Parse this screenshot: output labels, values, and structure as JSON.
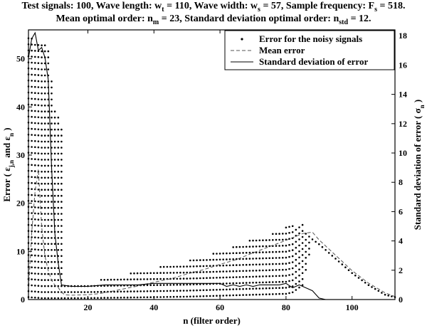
{
  "title_lines": [
    [
      {
        "t": "Test signals: 100, Wave length: w"
      },
      {
        "t": "t",
        "sub": true
      },
      {
        "t": " = 110, Wave width: w"
      },
      {
        "t": "s",
        "sub": true
      },
      {
        "t": " = 57, Sample frequency: F"
      },
      {
        "t": "s",
        "sub": true
      },
      {
        "t": " = 518."
      }
    ],
    [
      {
        "t": "Mean optimal order: n"
      },
      {
        "t": "m",
        "sub": true
      },
      {
        "t": " = 23, Standard deviation optimal order: n"
      },
      {
        "t": "std",
        "sub": true
      },
      {
        "t": " = 12."
      }
    ]
  ],
  "chart_data": {
    "type": "scatter",
    "xlabel": "n (filter order)",
    "ylabel_left_parts": [
      {
        "t": "Error ( ε"
      },
      {
        "t": "j,n",
        "sub": true
      },
      {
        "t": " and ε"
      },
      {
        "t": "n",
        "sub": true
      },
      {
        "t": " )"
      }
    ],
    "ylabel_right_parts": [
      {
        "t": "Standard deviation of error ( σ"
      },
      {
        "t": "n",
        "sub": true
      },
      {
        "t": " )"
      }
    ],
    "xlim": [
      2,
      113
    ],
    "ylim_left": [
      0,
      56
    ],
    "ylim_right": [
      0,
      18.4
    ],
    "x_ticks": [
      20,
      40,
      60,
      80,
      100
    ],
    "y_ticks_left": [
      0,
      10,
      20,
      30,
      40,
      50
    ],
    "y_ticks_right": [
      0,
      2,
      4,
      6,
      8,
      10,
      12,
      14,
      16,
      18
    ],
    "legend_position": "top-right",
    "legend": [
      {
        "label": "Error for the noisy signals",
        "style": "dots"
      },
      {
        "label": "Mean error",
        "style": "dashed"
      },
      {
        "label": "Standard deviation of error",
        "style": "solid"
      }
    ],
    "scatter_envelope": {
      "note": "Error for the noisy signals: one column of points per filter order n, spanning from the lower bound to the upper bound (left axis units)",
      "x": [
        2,
        4,
        6,
        8,
        9,
        10,
        11,
        12,
        13,
        20,
        30,
        40,
        50,
        60,
        70,
        75,
        80,
        82,
        85,
        88,
        90,
        95,
        100,
        105,
        110,
        113
      ],
      "upper": [
        55,
        54,
        54,
        52,
        46,
        40,
        38,
        36,
        3.5,
        3.5,
        5.0,
        6.5,
        8.0,
        10.0,
        12.5,
        13.5,
        15.0,
        15.5,
        15.5,
        13.5,
        12.0,
        9.0,
        6.0,
        3.5,
        1.5,
        0.8
      ],
      "lower": [
        0.5,
        0.4,
        0.3,
        0.3,
        0.3,
        0.3,
        0.3,
        0.3,
        0.3,
        0.3,
        0.4,
        0.5,
        0.6,
        0.8,
        1.0,
        1.1,
        1.2,
        1.5,
        3.0,
        12.5,
        11.5,
        8.5,
        5.5,
        3.0,
        1.0,
        0.5
      ]
    },
    "series": [
      {
        "name": "Mean error",
        "axis": "left",
        "style": "dashed",
        "x": [
          2,
          3,
          4,
          5,
          6,
          7,
          8,
          9,
          10,
          11,
          12,
          13,
          15,
          20,
          23,
          25,
          30,
          35,
          40,
          45,
          50,
          55,
          60,
          65,
          70,
          75,
          80,
          85,
          88,
          90,
          95,
          100,
          105,
          110,
          113
        ],
        "y": [
          1.5,
          14.0,
          22.5,
          27.0,
          15.0,
          9.0,
          6.0,
          4.0,
          3.0,
          2.5,
          1.5,
          1.0,
          0.9,
          1.0,
          1.2,
          1.4,
          2.1,
          2.8,
          3.6,
          4.3,
          5.3,
          6.2,
          7.3,
          8.3,
          9.7,
          11.0,
          12.3,
          13.7,
          14.0,
          12.4,
          9.2,
          6.0,
          3.4,
          1.4,
          0.6
        ]
      },
      {
        "name": "Standard deviation of error",
        "axis": "right",
        "style": "solid",
        "x": [
          2,
          3,
          4,
          5,
          6,
          7,
          8,
          9,
          10,
          11,
          12,
          15,
          20,
          25,
          30,
          35,
          40,
          45,
          50,
          55,
          60,
          62,
          64,
          66,
          68,
          70,
          72,
          75,
          78,
          80,
          82,
          84,
          86,
          88,
          90,
          92,
          95,
          100,
          105,
          110,
          113
        ],
        "y": [
          16.5,
          17.8,
          18.2,
          17.0,
          17.2,
          16.5,
          15.0,
          9.0,
          4.5,
          2.5,
          1.0,
          0.9,
          0.9,
          1.0,
          1.0,
          1.0,
          1.1,
          1.1,
          1.1,
          1.1,
          1.1,
          0.9,
          1.0,
          0.9,
          1.0,
          0.9,
          1.0,
          1.0,
          1.0,
          1.1,
          0.8,
          1.0,
          0.8,
          0.6,
          0.1,
          0.0,
          0.0,
          0.0,
          0.0,
          0.0,
          0.0
        ]
      }
    ]
  }
}
